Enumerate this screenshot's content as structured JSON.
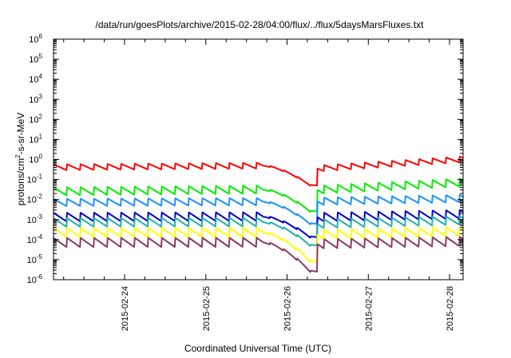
{
  "chart_data": {
    "type": "line",
    "title": "/data/run/goesPlots/archive/2015-02-28/04:00/flux/../flux/5daysMarsFluxes.txt",
    "xlabel": "Coordinated Universal Time (UTC)",
    "ylabel_parts": {
      "pre": "protons/cm",
      "sup": "2",
      "post": "-s-sr-MeV"
    },
    "y_scale": "log",
    "ylim": [
      1e-06,
      1000000.0
    ],
    "y_ticks": [
      {
        "base": "10",
        "exp": "-6",
        "value": 1e-06
      },
      {
        "base": "10",
        "exp": "-5",
        "value": 1e-05
      },
      {
        "base": "10",
        "exp": "-4",
        "value": 0.0001
      },
      {
        "base": "10",
        "exp": "-3",
        "value": 0.001
      },
      {
        "base": "10",
        "exp": "-2",
        "value": 0.01
      },
      {
        "base": "10",
        "exp": "-1",
        "value": 0.1
      },
      {
        "base": "10",
        "exp": "0",
        "value": 1
      },
      {
        "base": "10",
        "exp": "1",
        "value": 10
      },
      {
        "base": "10",
        "exp": "2",
        "value": 100
      },
      {
        "base": "10",
        "exp": "3",
        "value": 1000
      },
      {
        "base": "10",
        "exp": "4",
        "value": 10000
      },
      {
        "base": "10",
        "exp": "5",
        "value": 100000
      },
      {
        "base": "10",
        "exp": "6",
        "value": 1000000
      }
    ],
    "xlim": [
      "2015-02-23 03:00",
      "2015-02-28 04:00"
    ],
    "x_ticks": [
      "2015-02-24",
      "2015-02-25",
      "2015-02-26",
      "2015-02-27",
      "2015-02-28"
    ],
    "grid": false,
    "legend": "none",
    "sawtooth_period_hours": 4,
    "series": [
      {
        "color": "#ff0000",
        "start": 0.4,
        "end": 1.0,
        "amp": 2.0,
        "dip": 0.05,
        "recovery": 0.35
      },
      {
        "color": "#00ee00",
        "start": 0.025,
        "end": 0.07,
        "amp": 2.6,
        "dip": 0.0025,
        "recovery": 0.03
      },
      {
        "color": "#1e90ff",
        "start": 0.007,
        "end": 0.011,
        "amp": 2.4,
        "dip": 0.0006,
        "recovery": 0.008
      },
      {
        "color": "#0000cd",
        "start": 0.0013,
        "end": 0.0018,
        "amp": 2.8,
        "dip": 0.00013,
        "recovery": 0.0013
      },
      {
        "color": "#20b2aa",
        "start": 0.0007,
        "end": 0.0009,
        "amp": 2.8,
        "dip": 5e-05,
        "recovery": 0.0006
      },
      {
        "color": "#ffff00",
        "start": 0.00022,
        "end": 0.00025,
        "amp": 3.0,
        "dip": 8e-06,
        "recovery": 0.00018
      },
      {
        "color": "#8b3a62",
        "start": 7e-05,
        "end": 8e-05,
        "amp": 3.0,
        "dip": 2.5e-06,
        "recovery": 6e-05
      }
    ]
  }
}
